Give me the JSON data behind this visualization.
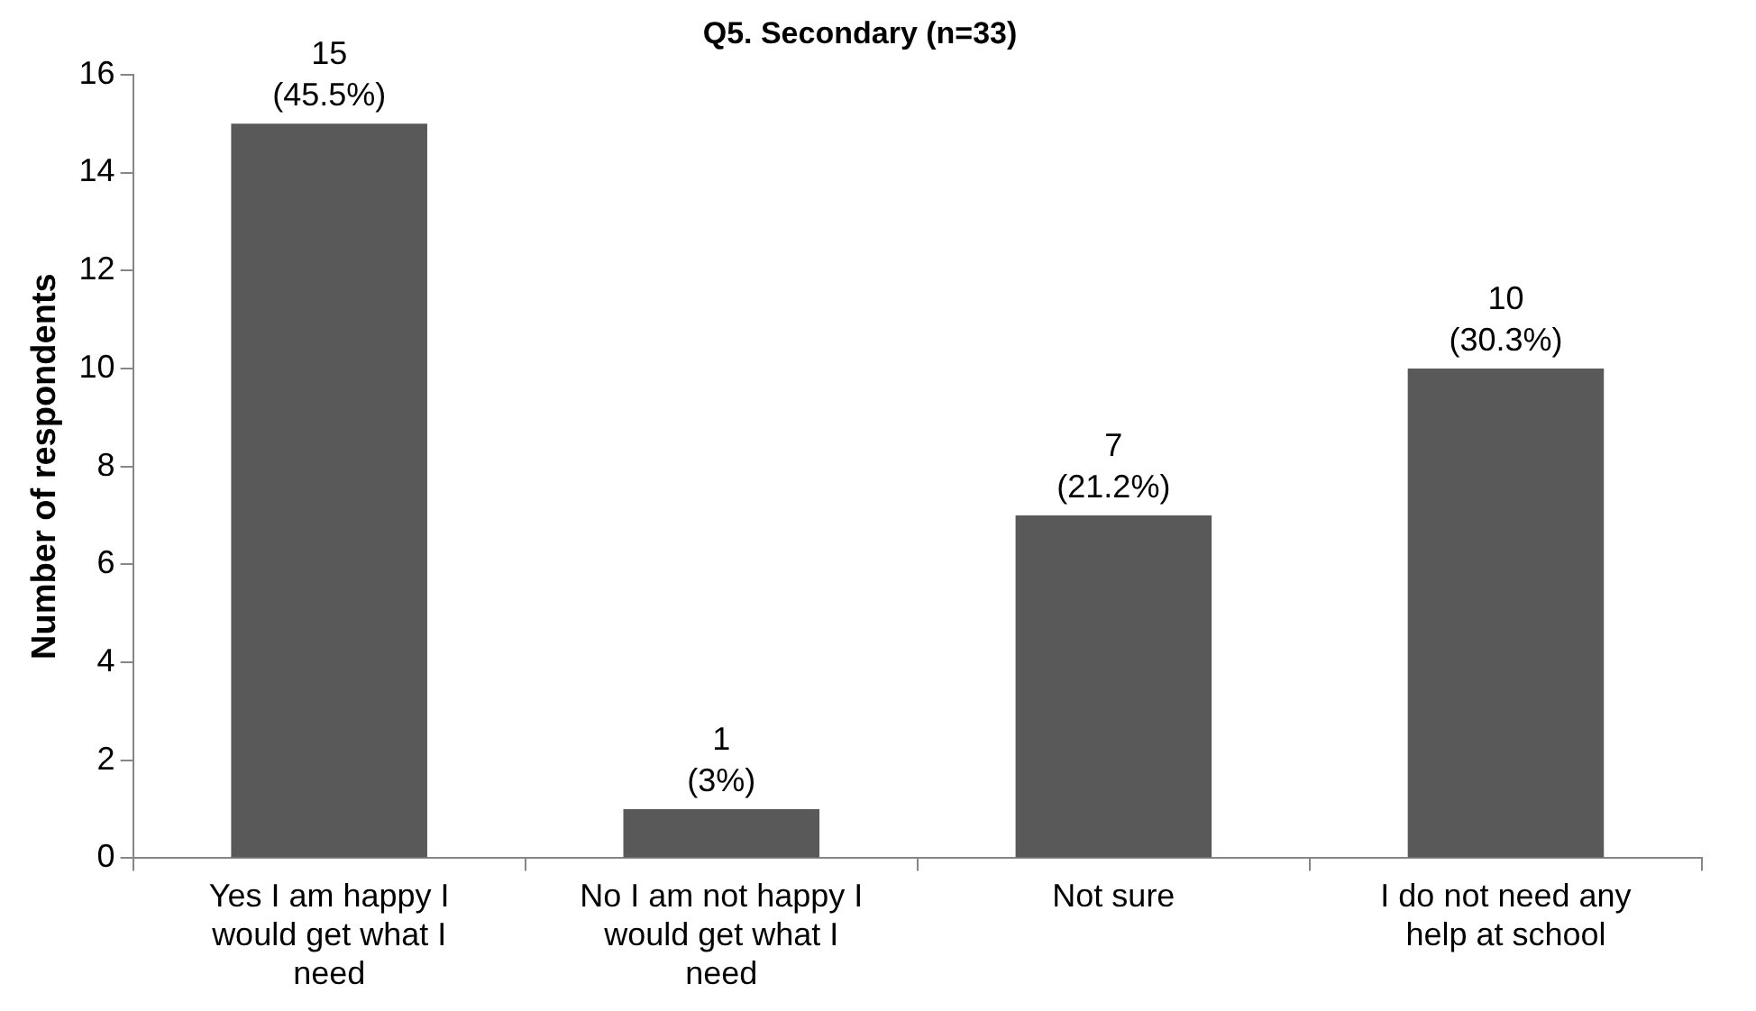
{
  "chart_data": {
    "type": "bar",
    "title": "Q5. Secondary (n=33)",
    "ylabel": "Number of respondents",
    "categories": [
      "Yes I am happy I would get what I need",
      "No I am not happy I would get what I need",
      "Not sure",
      "I do not need any help at school"
    ],
    "values": [
      15,
      1,
      7,
      10
    ],
    "color": "#595959",
    "value_labels": [
      "15\n(45.5%)",
      "1\n(3%)",
      "7\n(21.2%)",
      "10\n(30.3%)"
    ],
    "ylim": [
      0,
      16
    ],
    "yticks": [
      0,
      2,
      4,
      6,
      8,
      10,
      12,
      14,
      16
    ],
    "grid": false,
    "legend": false
  }
}
